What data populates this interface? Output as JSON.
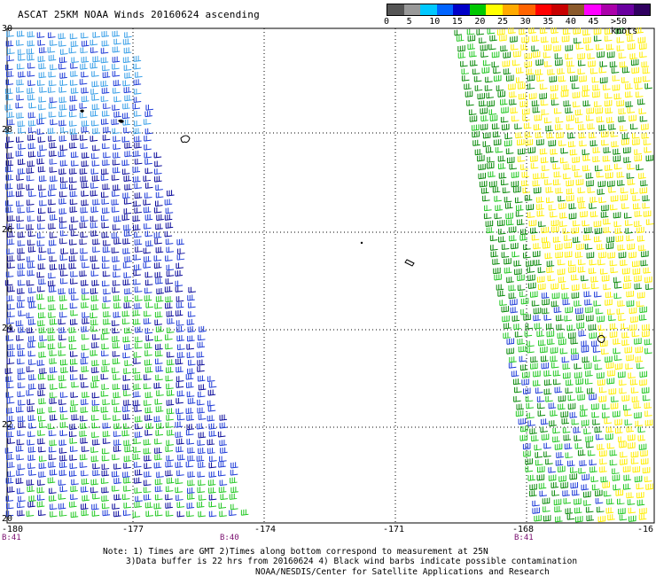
{
  "title": "ASCAT 25KM NOAA Winds 20160624 ascending",
  "scale": {
    "colors": [
      "#555555",
      "#999999",
      "#00c8ff",
      "#0064ff",
      "#0000c8",
      "#00c800",
      "#ffff00",
      "#ffaa00",
      "#ff6400",
      "#ff0000",
      "#c80000",
      "#8b5a2b",
      "#ff00ff",
      "#aa00aa",
      "#6a00a0",
      "#300060"
    ],
    "labels": [
      {
        "text": "0",
        "pos": 0
      },
      {
        "text": "5",
        "pos": 1
      },
      {
        "text": "10",
        "pos": 2
      },
      {
        "text": "15",
        "pos": 3
      },
      {
        "text": "20",
        "pos": 4
      },
      {
        "text": "25",
        "pos": 5
      },
      {
        "text": "30",
        "pos": 6
      },
      {
        "text": "35",
        "pos": 7
      },
      {
        "text": "40",
        "pos": 8
      },
      {
        "text": "45",
        "pos": 9
      },
      {
        "text": ">50 knots",
        "pos": 10
      }
    ]
  },
  "axes": {
    "lon_ticks": [
      "-180",
      "-177",
      "-174",
      "-171",
      "-168",
      "-16"
    ],
    "lat_ticks": [
      "30",
      "28",
      "26",
      "24",
      "22",
      "20"
    ]
  },
  "pass_labels": [
    "B:41",
    "B:40",
    "B:41"
  ],
  "notes": {
    "line1": "Note: 1) Times are GMT 2)Times along bottom correspond to measurement at 25N",
    "line2": "3)Data buffer is 22 hrs from 20160624 4) Black wind barbs indicate possible contamination"
  },
  "credit": "NOAA/NESDIS/Center for Satellite Applications and Research",
  "swath_colors": {
    "lightblue": "#3aa0e8",
    "blue": "#1f3cd8",
    "darkblue": "#0a0a9a",
    "green": "#22c822",
    "darkgreen": "#0a8a0a",
    "yellow": "#ffee00"
  }
}
